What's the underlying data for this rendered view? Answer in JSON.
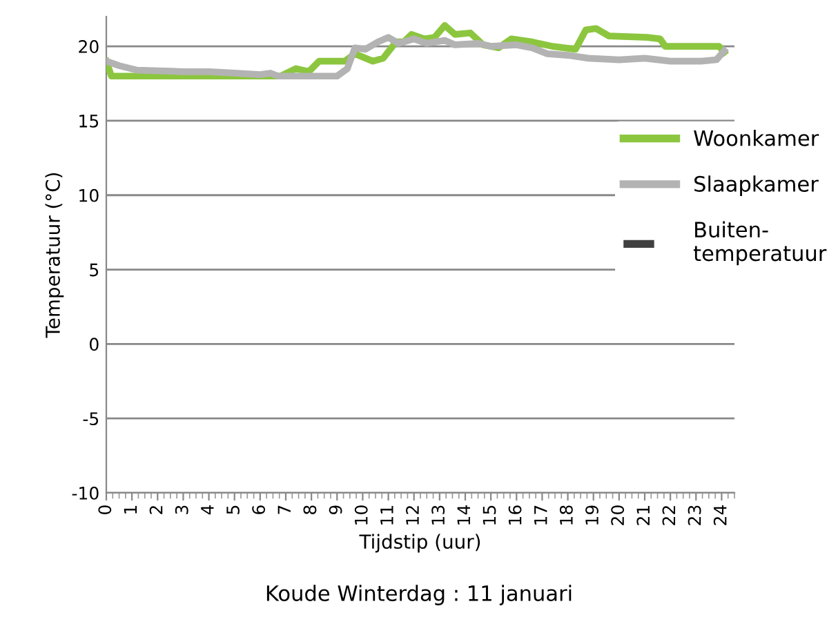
{
  "chart_data": {
    "type": "line",
    "title": "Koude Winterdag : 11 januari",
    "xlabel": "Tijdstip (uur)",
    "ylabel": "Temperatuur (°C)",
    "xlim": [
      0,
      24.5
    ],
    "xticks": [
      0,
      1,
      2,
      3,
      4,
      5,
      6,
      7,
      8,
      9,
      10,
      11,
      12,
      13,
      14,
      15,
      16,
      17,
      18,
      19,
      20,
      21,
      22,
      23,
      24
    ],
    "ylim": [
      -10,
      22
    ],
    "yticks": [
      -10,
      -5,
      0,
      5,
      10,
      15,
      20
    ],
    "grid": "y",
    "legend": "right",
    "marker": "none",
    "series": [
      {
        "name": "Woonkamer",
        "color": "#8cc63f",
        "line_style": "solid",
        "x": [
          0,
          0.2,
          6.8,
          7.4,
          7.9,
          8.3,
          9.3,
          9.7,
          10.4,
          10.8,
          11.3,
          11.6,
          11.9,
          12.4,
          12.8,
          13.2,
          13.6,
          14.2,
          14.7,
          15.3,
          15.8,
          16.6,
          17.4,
          18.3,
          18.7,
          19.1,
          19.6,
          21.1,
          21.6,
          21.8,
          23.9,
          24.1
        ],
        "values": [
          19.0,
          18.0,
          18.0,
          18.5,
          18.3,
          19.0,
          19.0,
          19.5,
          19.0,
          19.2,
          20.3,
          20.3,
          20.8,
          20.5,
          20.6,
          21.4,
          20.8,
          20.9,
          20.1,
          19.9,
          20.5,
          20.3,
          20.0,
          19.8,
          21.1,
          21.2,
          20.7,
          20.6,
          20.5,
          20.0,
          20.0,
          19.6
        ]
      },
      {
        "name": "Slaapkamer",
        "color": "#b3b3b3",
        "line_style": "solid",
        "x": [
          0,
          0.5,
          1.2,
          3,
          4,
          5,
          6,
          6.4,
          6.7,
          9.0,
          9.4,
          9.7,
          10.1,
          10.6,
          11.0,
          11.4,
          12.0,
          12.5,
          13.2,
          13.6,
          14.5,
          15.0,
          16.0,
          16.6,
          17.2,
          18.0,
          18.8,
          20,
          21,
          22,
          23.2,
          23.8,
          24.1
        ],
        "values": [
          19.0,
          18.7,
          18.4,
          18.3,
          18.3,
          18.2,
          18.1,
          18.2,
          18.0,
          18.0,
          18.5,
          19.9,
          19.8,
          20.3,
          20.6,
          20.2,
          20.5,
          20.2,
          20.4,
          20.1,
          20.2,
          20.0,
          20.1,
          19.9,
          19.5,
          19.4,
          19.2,
          19.1,
          19.2,
          19.0,
          19.0,
          19.1,
          19.7
        ]
      },
      {
        "name": "Buiten-\ntemperatuur",
        "color": "#404040",
        "line_style": "dashed"
      }
    ]
  }
}
